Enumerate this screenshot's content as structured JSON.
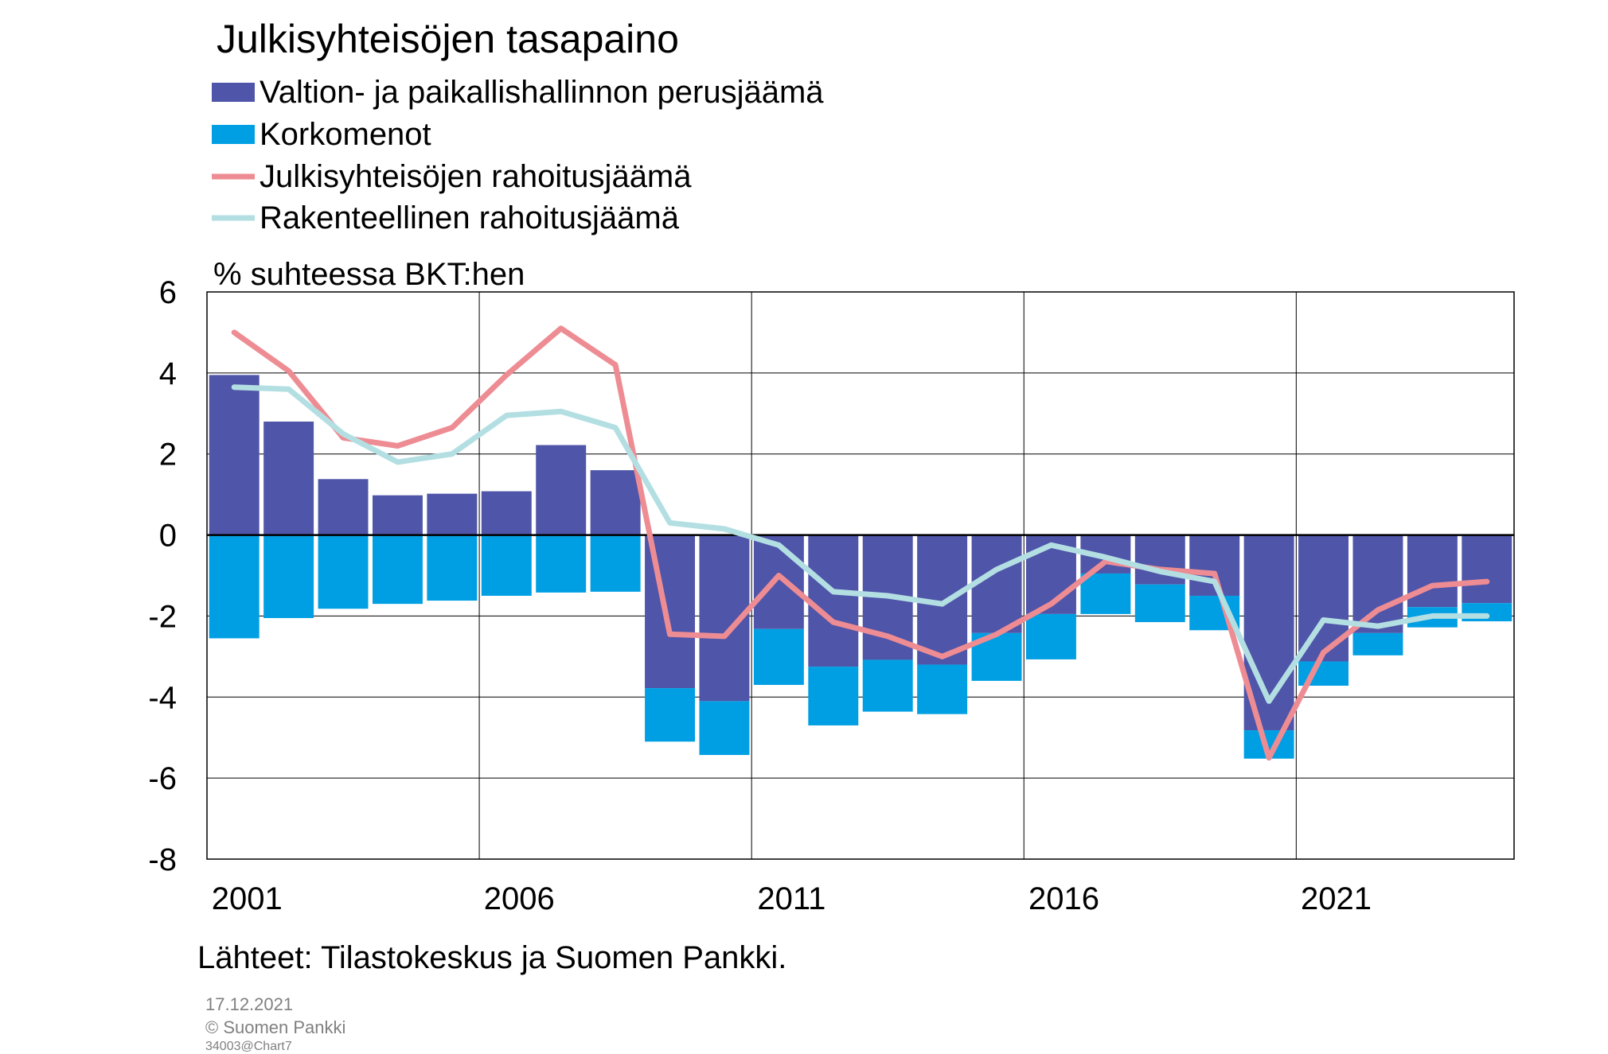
{
  "chart_data": {
    "type": "bar",
    "title": "Julkisyhteisöjen tasapaino",
    "ylabel": "% suhteessa BKT:hen",
    "ylim": [
      -8,
      6
    ],
    "yticks": [
      6,
      4,
      2,
      0,
      -2,
      -4,
      -6,
      -8
    ],
    "x": [
      2001,
      2002,
      2003,
      2004,
      2005,
      2006,
      2007,
      2008,
      2009,
      2010,
      2011,
      2012,
      2013,
      2014,
      2015,
      2016,
      2017,
      2018,
      2019,
      2020,
      2021,
      2022,
      2023,
      2024
    ],
    "xtick_labels": [
      "2001",
      "2006",
      "2011",
      "2016",
      "2021"
    ],
    "grid": true,
    "stacked": true,
    "series": [
      {
        "name": "Valtion- ja paikallishallinnon perusjäämä",
        "type": "bar",
        "color": "#4f55a8",
        "values": [
          3.95,
          2.8,
          1.38,
          0.98,
          1.02,
          1.08,
          2.22,
          1.6,
          -3.78,
          -4.1,
          -2.32,
          -3.25,
          -3.08,
          -3.2,
          -2.42,
          -1.95,
          -0.95,
          -1.22,
          -1.5,
          -4.82,
          -3.12,
          -2.42,
          -1.78,
          -1.68
        ]
      },
      {
        "name": "Korkomenot",
        "type": "bar",
        "color": "#009fe3",
        "values": [
          -2.55,
          -2.05,
          -1.82,
          -1.7,
          -1.62,
          -1.5,
          -1.42,
          -1.4,
          -1.32,
          -1.33,
          -1.38,
          -1.45,
          -1.28,
          -1.22,
          -1.18,
          -1.12,
          -1.0,
          -0.93,
          -0.85,
          -0.7,
          -0.6,
          -0.55,
          -0.5,
          -0.45
        ]
      },
      {
        "name": "Julkisyhteisöjen rahoitusjäämä",
        "type": "line",
        "color": "#ee8c93",
        "values": [
          5.0,
          4.05,
          2.4,
          2.2,
          2.65,
          3.95,
          5.1,
          4.2,
          -2.45,
          -2.5,
          -1.0,
          -2.15,
          -2.5,
          -3.0,
          -2.45,
          -1.7,
          -0.65,
          -0.85,
          -0.95,
          -5.5,
          -2.9,
          -1.85,
          -1.25,
          -1.15
        ]
      },
      {
        "name": "Rakenteellinen rahoitusjäämä",
        "type": "line",
        "color": "#b3dfe3",
        "values": [
          3.65,
          3.6,
          2.5,
          1.8,
          2.0,
          2.95,
          3.05,
          2.65,
          0.3,
          0.15,
          -0.25,
          -1.4,
          -1.5,
          -1.7,
          -0.85,
          -0.25,
          -0.55,
          -0.9,
          -1.15,
          -4.1,
          -2.1,
          -2.25,
          -2.0,
          -2.0
        ]
      }
    ],
    "legend_position": "top-left",
    "source": "Lähteet: Tilastokeskus ja Suomen Pankki."
  },
  "footer": {
    "date": "17.12.2021",
    "copyright": "© Suomen Pankki",
    "chart_id": "34003@Chart7"
  }
}
